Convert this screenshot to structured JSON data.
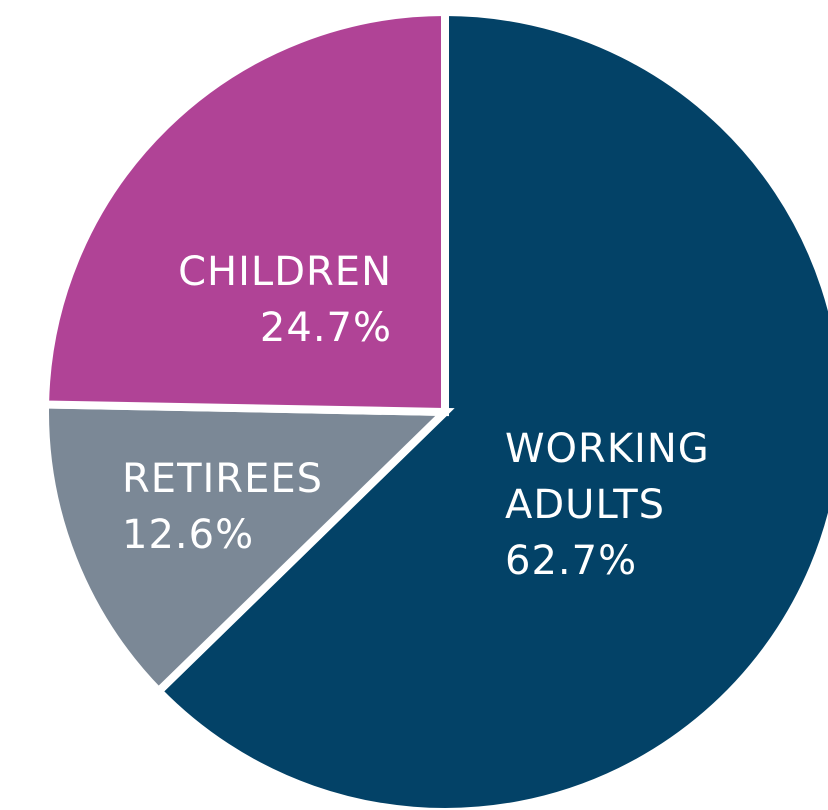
{
  "chart_data": {
    "type": "pie",
    "title": "",
    "slices": [
      {
        "name": "WORKING ADULTS",
        "label_lines": [
          "WORKING",
          "ADULTS"
        ],
        "value_label": "62.7%",
        "value": 62.7,
        "color": "#034267"
      },
      {
        "name": "RETIREES",
        "label_lines": [
          "RETIREES"
        ],
        "value_label": "12.6%",
        "value": 12.6,
        "color": "#7b8896"
      },
      {
        "name": "CHILDREN",
        "label_lines": [
          "CHILDREN"
        ],
        "value_label": "24.7%",
        "value": 24.7,
        "color": "#b04396"
      }
    ],
    "start": "12 o'clock",
    "direction": "clockwise",
    "slice_separator_color": "#ffffff",
    "legend": "none"
  }
}
